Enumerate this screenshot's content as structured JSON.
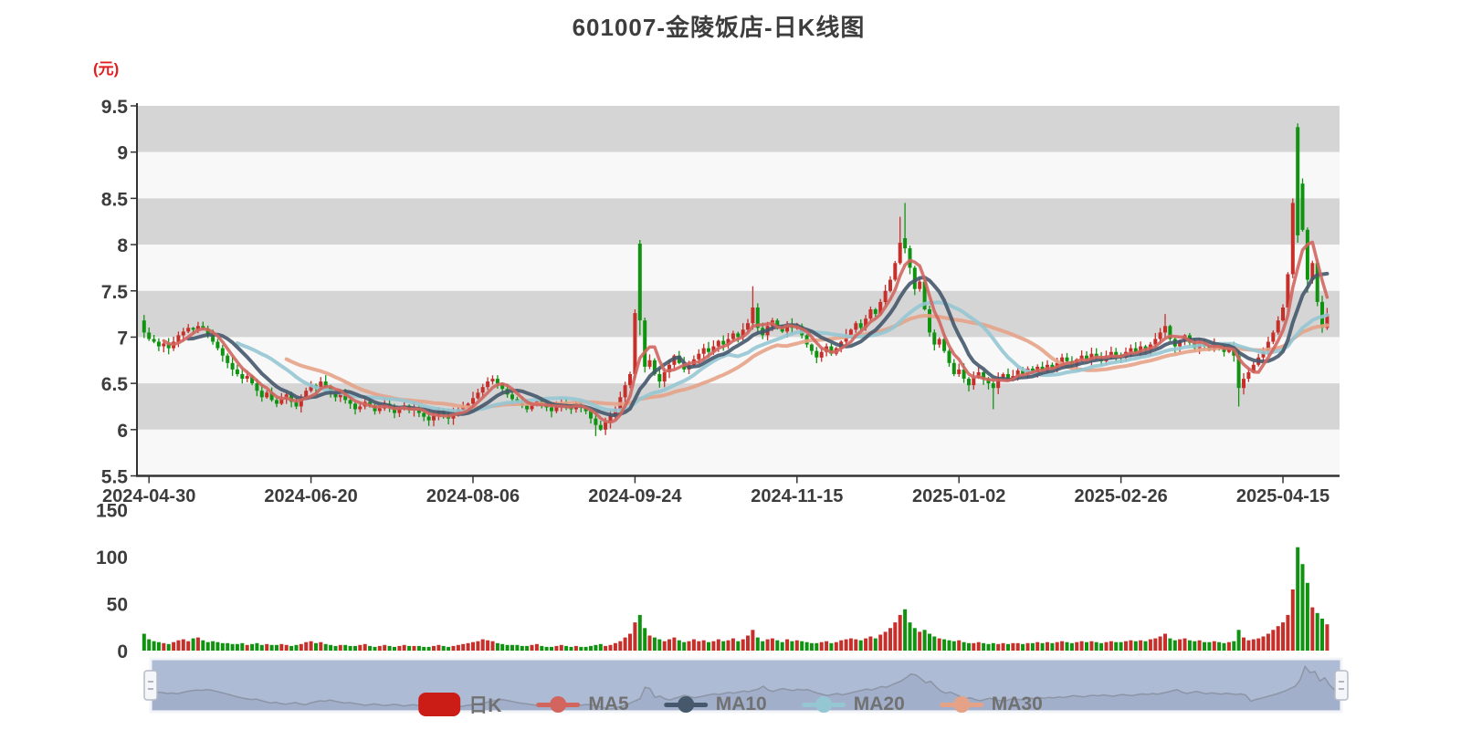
{
  "title": "601007-金陵饭店-日K线图",
  "unit_label": "(元)",
  "legend": {
    "items": [
      {
        "id": "kline",
        "label": "日K"
      },
      {
        "id": "ma5",
        "label": "MA5"
      },
      {
        "id": "ma10",
        "label": "MA10"
      },
      {
        "id": "ma20",
        "label": "MA20"
      },
      {
        "id": "ma30",
        "label": "MA30"
      }
    ]
  },
  "colors": {
    "up": "#c62f2a",
    "down": "#119312",
    "legend_candle_swatch": "#cb1d16",
    "ma5": "#d2665f",
    "ma10": "#45586c",
    "ma20": "#95c7d3",
    "ma30": "#e6a287",
    "band_gray": "#d5d5d5",
    "band_light": "#f8f8f8",
    "axis": "#333333",
    "axis_label": "#3c3c3c",
    "title_text": "#3d3d3d",
    "unit_text": "#e02020",
    "legend_text": "#717171",
    "nav_fill": "#aebbd4",
    "nav_line": "#8c95a6",
    "nav_area": "rgba(140,155,185,0.35)",
    "nav_border": "#f2f4f7",
    "nav_handle_fill": "#f4f6f9",
    "nav_handle_stroke": "#b6bcc7"
  },
  "chart_data": {
    "type": "candlestick",
    "title": "601007-金陵饭店-日K线图",
    "y_axis": {
      "unit": "元",
      "ticks": [
        9.5,
        9,
        8.5,
        8,
        7.5,
        7,
        6.5,
        6,
        5.5
      ],
      "range": [
        5.5,
        9.5
      ]
    },
    "x_axis": {
      "labels": [
        "2024-04-30",
        "2024-06-20",
        "2024-08-06",
        "2024-09-24",
        "2024-11-15",
        "2025-01-02",
        "2025-02-26",
        "2025-04-15"
      ],
      "tick_indices": [
        1,
        34,
        67,
        100,
        133,
        166,
        199,
        232
      ]
    },
    "volume_axis": {
      "ticks": [
        150,
        100,
        50,
        0
      ],
      "range": [
        0,
        150
      ]
    },
    "ma_series": [
      {
        "name": "MA5",
        "window": 5,
        "color": "#d2665f",
        "width": 3.5
      },
      {
        "name": "MA10",
        "window": 10,
        "color": "#45586c",
        "width": 4
      },
      {
        "name": "MA20",
        "window": 20,
        "color": "#95c7d3",
        "width": 4
      },
      {
        "name": "MA30",
        "window": 30,
        "color": "#e6a287",
        "width": 4
      }
    ],
    "closes": [
      7.05,
      6.98,
      6.95,
      6.9,
      6.93,
      6.88,
      6.95,
      7.02,
      7.06,
      7.1,
      7.08,
      7.12,
      7.09,
      7.02,
      6.95,
      6.88,
      6.8,
      6.72,
      6.65,
      6.6,
      6.55,
      6.58,
      6.5,
      6.42,
      6.35,
      6.4,
      6.32,
      6.28,
      6.33,
      6.38,
      6.3,
      6.25,
      6.35,
      6.42,
      6.48,
      6.45,
      6.52,
      6.46,
      6.4,
      6.35,
      6.38,
      6.32,
      6.28,
      6.22,
      6.25,
      6.3,
      6.26,
      6.2,
      6.23,
      6.28,
      6.24,
      6.18,
      6.22,
      6.26,
      6.21,
      6.24,
      6.18,
      6.14,
      6.1,
      6.15,
      6.2,
      6.16,
      6.12,
      6.17,
      6.22,
      6.25,
      6.28,
      6.34,
      6.4,
      6.46,
      6.52,
      6.55,
      6.5,
      6.44,
      6.38,
      6.33,
      6.3,
      6.26,
      6.22,
      6.27,
      6.31,
      6.28,
      6.24,
      6.2,
      6.25,
      6.29,
      6.26,
      6.22,
      6.27,
      6.24,
      6.2,
      6.12,
      6.05,
      6.0,
      6.08,
      6.15,
      6.22,
      6.35,
      6.48,
      6.6,
      7.26,
      7.18,
      6.68,
      6.75,
      6.6,
      6.52,
      6.62,
      6.7,
      6.8,
      6.72,
      6.65,
      6.7,
      6.76,
      6.82,
      6.88,
      6.84,
      6.9,
      6.96,
      6.92,
      6.98,
      7.04,
      7.0,
      7.08,
      7.15,
      7.32,
      7.1,
      7.02,
      7.12,
      7.18,
      7.12,
      7.06,
      7.14,
      7.1,
      7.12,
      7.02,
      6.92,
      6.85,
      6.78,
      6.84,
      6.9,
      6.82,
      6.88,
      6.95,
      7.02,
      7.08,
      7.15,
      7.1,
      7.2,
      7.3,
      7.25,
      7.38,
      7.5,
      7.62,
      7.8,
      8.02,
      7.96,
      7.75,
      7.52,
      7.6,
      7.3,
      7.05,
      6.92,
      6.98,
      6.85,
      6.72,
      6.6,
      6.65,
      6.55,
      6.48,
      6.56,
      6.62,
      6.55,
      6.5,
      6.45,
      6.56,
      6.6,
      6.54,
      6.58,
      6.64,
      6.6,
      6.66,
      6.62,
      6.68,
      6.64,
      6.7,
      6.66,
      6.72,
      6.78,
      6.74,
      6.7,
      6.76,
      6.8,
      6.76,
      6.82,
      6.78,
      6.74,
      6.8,
      6.84,
      6.8,
      6.78,
      6.84,
      6.88,
      6.84,
      6.9,
      6.86,
      6.92,
      6.98,
      7.05,
      7.12,
      6.98,
      6.9,
      6.96,
      7.02,
      6.94,
      6.88,
      6.94,
      6.9,
      6.86,
      6.92,
      6.88,
      6.84,
      6.88,
      6.8,
      6.45,
      6.55,
      6.62,
      6.7,
      6.78,
      6.85,
      6.95,
      7.05,
      7.18,
      7.32,
      7.68,
      8.45,
      8.1,
      8.16,
      7.62,
      7.8,
      7.38,
      7.1,
      7.25
    ],
    "volumes": [
      18,
      12,
      10,
      9,
      8,
      7,
      9,
      11,
      12,
      10,
      13,
      14,
      11,
      9,
      10,
      9,
      8,
      8,
      7,
      7,
      8,
      6,
      7,
      8,
      6,
      7,
      6,
      6,
      7,
      6,
      5,
      6,
      7,
      9,
      10,
      8,
      9,
      7,
      6,
      5,
      6,
      6,
      5,
      5,
      6,
      7,
      5,
      4,
      5,
      6,
      5,
      4,
      5,
      6,
      5,
      5,
      5,
      4,
      4,
      5,
      6,
      5,
      4,
      5,
      6,
      7,
      8,
      9,
      10,
      12,
      11,
      10,
      8,
      7,
      6,
      6,
      6,
      5,
      5,
      6,
      7,
      5,
      4,
      4,
      5,
      6,
      5,
      4,
      5,
      4,
      4,
      5,
      6,
      7,
      5,
      6,
      8,
      10,
      14,
      18,
      30,
      38,
      24,
      16,
      14,
      12,
      10,
      12,
      14,
      11,
      9,
      10,
      12,
      10,
      11,
      9,
      10,
      12,
      10,
      11,
      13,
      10,
      12,
      16,
      22,
      14,
      10,
      12,
      13,
      11,
      9,
      12,
      10,
      11,
      10,
      9,
      8,
      8,
      9,
      10,
      8,
      9,
      11,
      12,
      13,
      12,
      11,
      13,
      15,
      13,
      17,
      20,
      24,
      30,
      38,
      44,
      30,
      24,
      20,
      22,
      18,
      15,
      13,
      12,
      11,
      10,
      11,
      9,
      8,
      8,
      9,
      8,
      7,
      8,
      7,
      8,
      7,
      8,
      8,
      7,
      8,
      8,
      9,
      8,
      9,
      8,
      9,
      10,
      9,
      8,
      9,
      10,
      9,
      10,
      9,
      8,
      9,
      10,
      9,
      9,
      10,
      11,
      10,
      11,
      10,
      12,
      13,
      15,
      18,
      13,
      11,
      12,
      13,
      11,
      10,
      11,
      9,
      9,
      10,
      9,
      8,
      9,
      10,
      22,
      14,
      11,
      12,
      13,
      15,
      18,
      22,
      26,
      30,
      38,
      65,
      110,
      92,
      72,
      46,
      40,
      34,
      28
    ],
    "ohlc_overrides": {
      "0": {
        "o": 7.18,
        "h": 7.24,
        "l": 6.99
      },
      "92": {
        "l": 5.93
      },
      "100": {
        "h": 7.3
      },
      "101": {
        "o": 8.01,
        "h": 8.05,
        "l": 7.02
      },
      "124": {
        "h": 7.55
      },
      "154": {
        "h": 8.3
      },
      "155": {
        "o": 8.07,
        "h": 8.45
      },
      "173": {
        "l": 6.22
      },
      "208": {
        "h": 7.25
      },
      "223": {
        "l": 6.25
      },
      "234": {
        "h": 8.5
      },
      "235": {
        "o": 9.27,
        "h": 9.31,
        "l": 8.02
      },
      "236": {
        "o": 8.66
      },
      "237": {
        "l": 7.48
      }
    }
  }
}
